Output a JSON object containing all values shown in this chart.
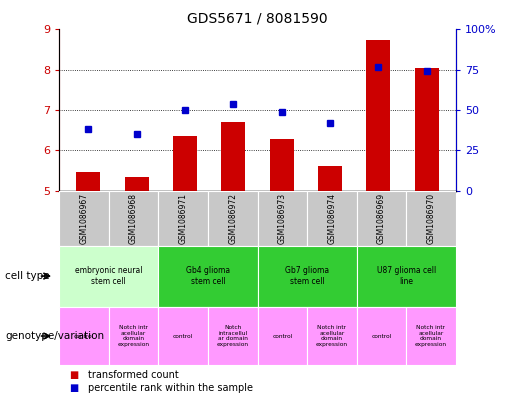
{
  "title": "GDS5671 / 8081590",
  "samples": [
    "GSM1086967",
    "GSM1086968",
    "GSM1086971",
    "GSM1086972",
    "GSM1086973",
    "GSM1086974",
    "GSM1086969",
    "GSM1086970"
  ],
  "transformed_count": [
    5.45,
    5.35,
    6.35,
    6.7,
    6.28,
    5.6,
    8.75,
    8.05
  ],
  "percentile_rank": [
    38,
    35,
    50,
    54,
    49,
    42,
    77,
    74
  ],
  "ylim_left": [
    5,
    9
  ],
  "ylim_right": [
    0,
    100
  ],
  "yticks_left": [
    5,
    6,
    7,
    8,
    9
  ],
  "yticks_right": [
    0,
    25,
    50,
    75,
    100
  ],
  "ytick_labels_right": [
    "0",
    "25",
    "50",
    "75",
    "100%"
  ],
  "bar_color": "#cc0000",
  "dot_color": "#0000cc",
  "cell_type_groups": [
    {
      "label": "embryonic neural\nstem cell",
      "start": 0,
      "end": 2,
      "color": "#ccffcc"
    },
    {
      "label": "Gb4 glioma\nstem cell",
      "start": 2,
      "end": 4,
      "color": "#33cc33"
    },
    {
      "label": "Gb7 glioma\nstem cell",
      "start": 4,
      "end": 6,
      "color": "#33cc33"
    },
    {
      "label": "U87 glioma cell\nline",
      "start": 6,
      "end": 8,
      "color": "#33cc33"
    }
  ],
  "genotype_groups": [
    {
      "label": "control",
      "start": 0,
      "end": 1,
      "color": "#ff99ff"
    },
    {
      "label": "Notch intr\nacellular\ndomain\nexpression",
      "start": 1,
      "end": 2,
      "color": "#ff99ff"
    },
    {
      "label": "control",
      "start": 2,
      "end": 3,
      "color": "#ff99ff"
    },
    {
      "label": "Notch\nintracellul\nar domain\nexpression",
      "start": 3,
      "end": 4,
      "color": "#ff99ff"
    },
    {
      "label": "control",
      "start": 4,
      "end": 5,
      "color": "#ff99ff"
    },
    {
      "label": "Notch intr\nacellular\ndomain\nexpression",
      "start": 5,
      "end": 6,
      "color": "#ff99ff"
    },
    {
      "label": "control",
      "start": 6,
      "end": 7,
      "color": "#ff99ff"
    },
    {
      "label": "Notch intr\nacellular\ndomain\nexpression",
      "start": 7,
      "end": 8,
      "color": "#ff99ff"
    }
  ],
  "cell_type_label": "cell type",
  "genotype_label": "genotype/variation",
  "legend_red_label": "transformed count",
  "legend_blue_label": "percentile rank within the sample",
  "sample_bg_color": "#c8c8c8",
  "left_axis_color": "#cc0000",
  "right_axis_color": "#0000cc"
}
